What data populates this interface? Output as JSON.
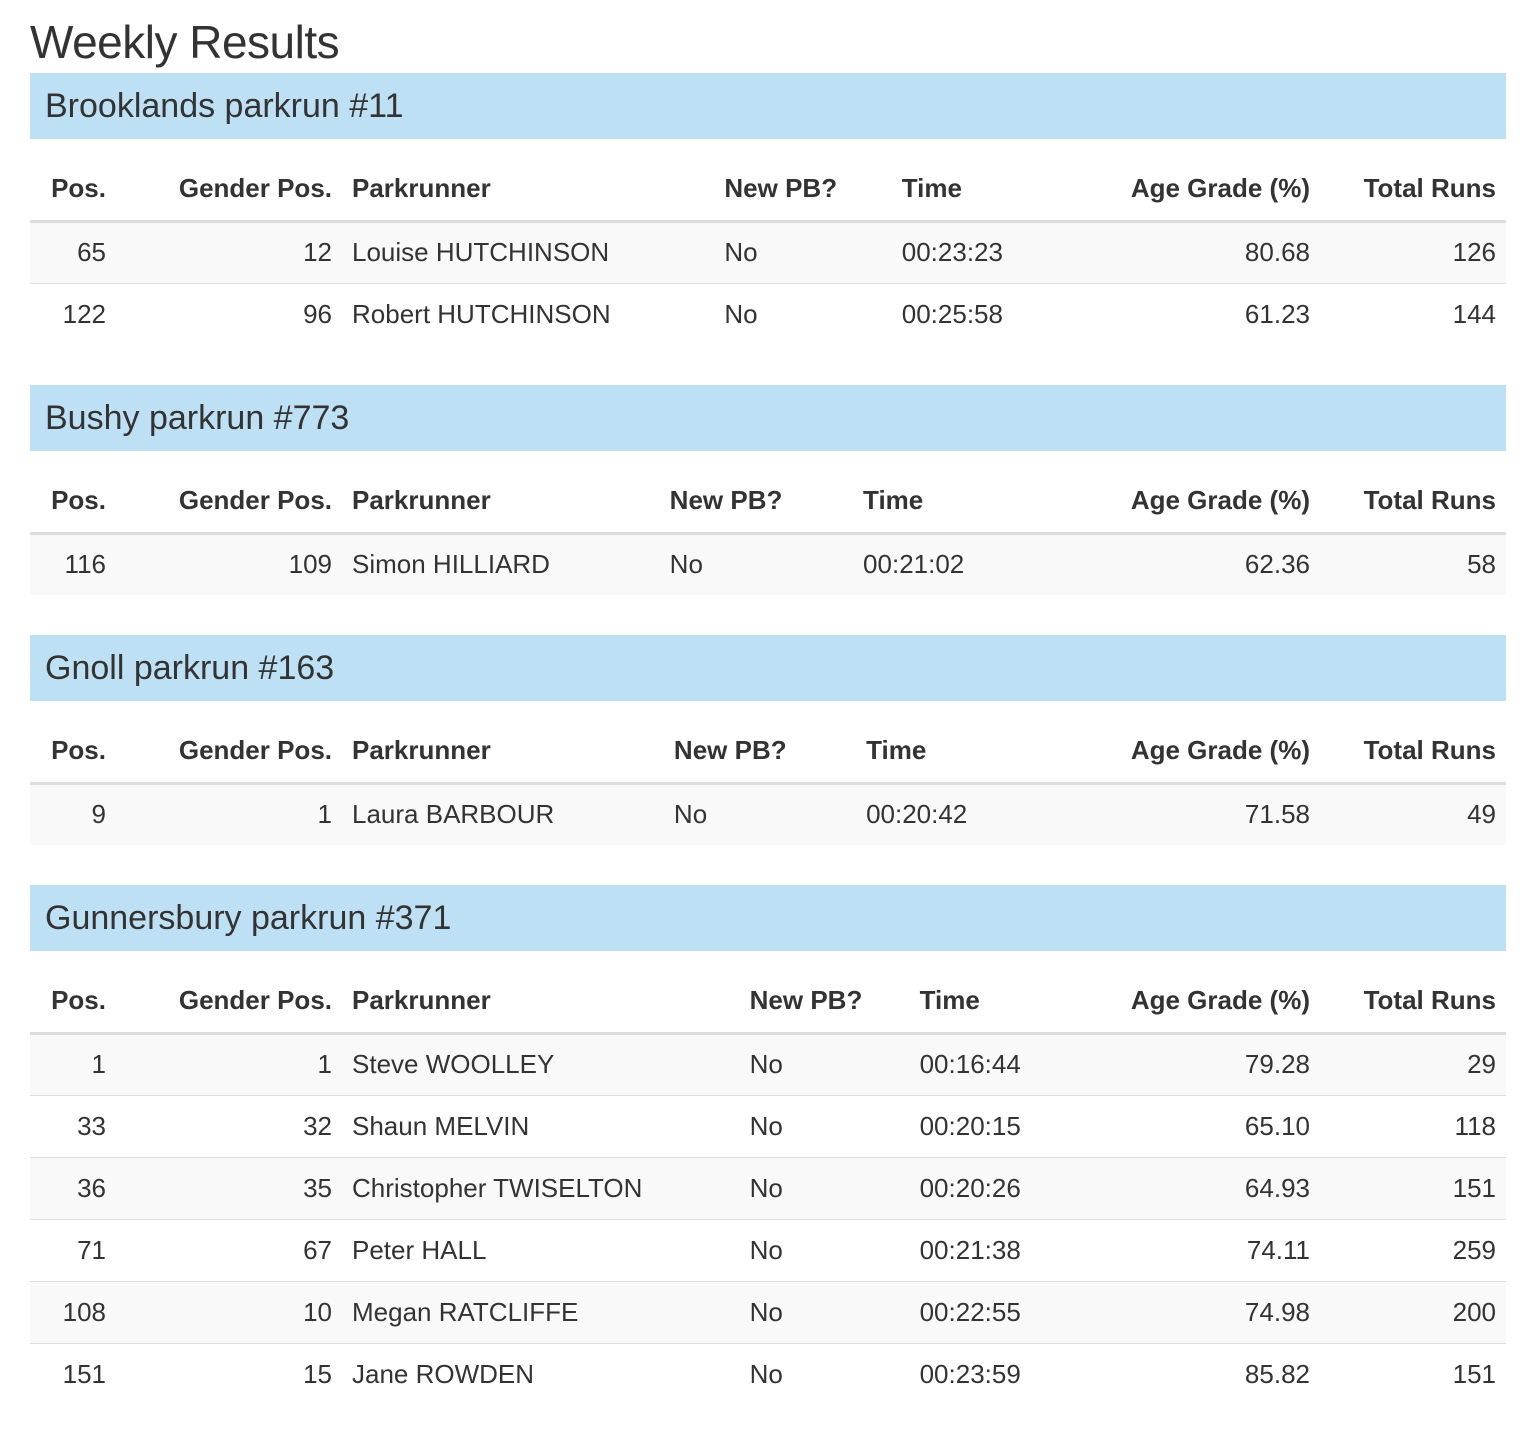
{
  "page": {
    "title": "Weekly Results"
  },
  "columns": {
    "pos": "Pos.",
    "gender_pos": "Gender Pos.",
    "parkrunner": "Parkrunner",
    "new_pb": "New PB?",
    "time": "Time",
    "age_grade": "Age Grade (%)",
    "total_runs": "Total Runs"
  },
  "events": [
    {
      "name": "Brooklands parkrun #11",
      "rows": [
        {
          "pos": "65",
          "gender_pos": "12",
          "parkrunner": "Louise HUTCHINSON",
          "new_pb": "No",
          "time": "00:23:23",
          "age_grade": "80.68",
          "total_runs": "126"
        },
        {
          "pos": "122",
          "gender_pos": "96",
          "parkrunner": "Robert HUTCHINSON",
          "new_pb": "No",
          "time": "00:25:58",
          "age_grade": "61.23",
          "total_runs": "144"
        }
      ]
    },
    {
      "name": "Bushy parkrun #773",
      "rows": [
        {
          "pos": "116",
          "gender_pos": "109",
          "parkrunner": "Simon HILLIARD",
          "new_pb": "No",
          "time": "00:21:02",
          "age_grade": "62.36",
          "total_runs": "58"
        }
      ]
    },
    {
      "name": "Gnoll parkrun #163",
      "rows": [
        {
          "pos": "9",
          "gender_pos": "1",
          "parkrunner": "Laura BARBOUR",
          "new_pb": "No",
          "time": "00:20:42",
          "age_grade": "71.58",
          "total_runs": "49"
        }
      ]
    },
    {
      "name": "Gunnersbury parkrun #371",
      "rows": [
        {
          "pos": "1",
          "gender_pos": "1",
          "parkrunner": "Steve WOOLLEY",
          "new_pb": "No",
          "time": "00:16:44",
          "age_grade": "79.28",
          "total_runs": "29"
        },
        {
          "pos": "33",
          "gender_pos": "32",
          "parkrunner": "Shaun MELVIN",
          "new_pb": "No",
          "time": "00:20:15",
          "age_grade": "65.10",
          "total_runs": "118"
        },
        {
          "pos": "36",
          "gender_pos": "35",
          "parkrunner": "Christopher TWISELTON",
          "new_pb": "No",
          "time": "00:20:26",
          "age_grade": "64.93",
          "total_runs": "151"
        },
        {
          "pos": "71",
          "gender_pos": "67",
          "parkrunner": "Peter HALL",
          "new_pb": "No",
          "time": "00:21:38",
          "age_grade": "74.11",
          "total_runs": "259"
        },
        {
          "pos": "108",
          "gender_pos": "10",
          "parkrunner": "Megan RATCLIFFE",
          "new_pb": "No",
          "time": "00:22:55",
          "age_grade": "74.98",
          "total_runs": "200"
        },
        {
          "pos": "151",
          "gender_pos": "15",
          "parkrunner": "Jane ROWDEN",
          "new_pb": "No",
          "time": "00:23:59",
          "age_grade": "85.82",
          "total_runs": "151"
        }
      ]
    }
  ]
}
